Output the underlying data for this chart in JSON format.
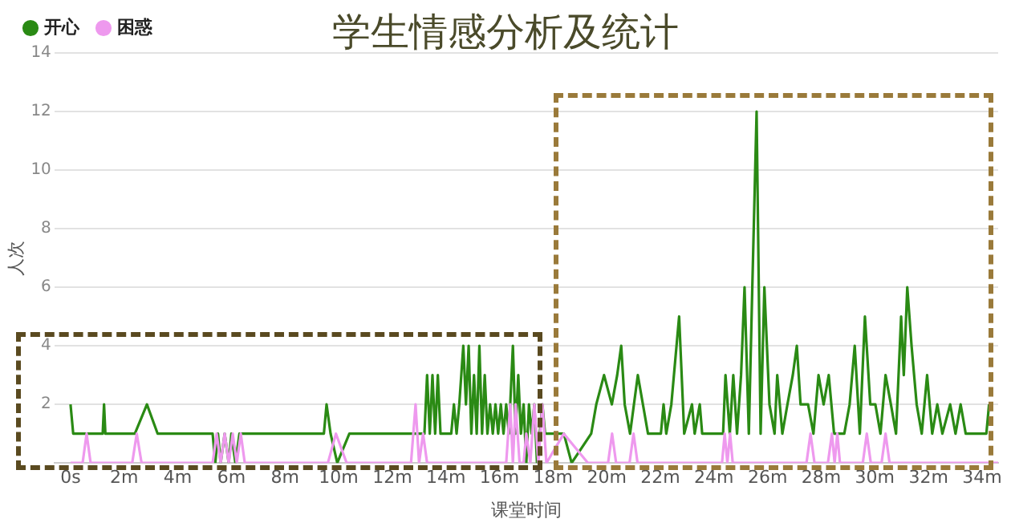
{
  "chart_data": {
    "type": "line",
    "title": "学生情感分析及统计",
    "xlabel": "课堂时间",
    "ylabel": "人次",
    "xlim": [
      -0.6,
      34.6
    ],
    "ylim": [
      0,
      14
    ],
    "xticks": [
      {
        "value": 0,
        "label": "0s"
      },
      {
        "value": 2,
        "label": "2m"
      },
      {
        "value": 4,
        "label": "4m"
      },
      {
        "value": 6,
        "label": "6m"
      },
      {
        "value": 8,
        "label": "8m"
      },
      {
        "value": 10,
        "label": "10m"
      },
      {
        "value": 12,
        "label": "12m"
      },
      {
        "value": 14,
        "label": "14m"
      },
      {
        "value": 16,
        "label": "16m"
      },
      {
        "value": 18,
        "label": "18m"
      },
      {
        "value": 20,
        "label": "20m"
      },
      {
        "value": 22,
        "label": "22m"
      },
      {
        "value": 24,
        "label": "24m"
      },
      {
        "value": 26,
        "label": "26m"
      },
      {
        "value": 28,
        "label": "28m"
      },
      {
        "value": 30,
        "label": "30m"
      },
      {
        "value": 32,
        "label": "32m"
      },
      {
        "value": 34,
        "label": "34m"
      }
    ],
    "yticks": [
      {
        "value": 0,
        "label": null
      },
      2,
      4,
      6,
      8,
      10,
      12,
      14
    ],
    "grid": "y",
    "legend": "top left",
    "marker": "none",
    "line_style": "solid",
    "series": [
      {
        "name": "开心",
        "color": "#2a8a14",
        "x": [
          0,
          0.1,
          1.2,
          1.25,
          1.3,
          2.4,
          2.85,
          3.25,
          5.3,
          5.4,
          5.5,
          5.6,
          5.75,
          5.9,
          6.0,
          6.15,
          6.3,
          9.45,
          9.55,
          9.7,
          9.95,
          10.4,
          13.2,
          13.3,
          13.4,
          13.5,
          13.6,
          13.7,
          13.8,
          14.2,
          14.3,
          14.4,
          14.5,
          14.65,
          14.75,
          14.85,
          14.95,
          15.05,
          15.15,
          15.25,
          15.35,
          15.45,
          15.55,
          15.65,
          15.75,
          15.85,
          15.95,
          16.05,
          16.15,
          16.25,
          16.35,
          16.5,
          16.6,
          16.7,
          16.8,
          16.9,
          17.0,
          17.1,
          17.2,
          17.3,
          17.4,
          17.5,
          17.6,
          17.7,
          18.4,
          18.69,
          19.42,
          19.61,
          19.9,
          20.19,
          20.39,
          20.54,
          20.67,
          20.87,
          21.16,
          21.35,
          21.54,
          22.02,
          22.12,
          22.22,
          22.41,
          22.7,
          22.89,
          23.18,
          23.28,
          23.47,
          23.56,
          24.34,
          24.43,
          24.59,
          24.72,
          24.86,
          25.01,
          25.14,
          25.3,
          25.43,
          25.59,
          25.74,
          25.88,
          26.07,
          26.26,
          26.36,
          26.55,
          26.74,
          26.94,
          27.09,
          27.23,
          27.51,
          27.71,
          27.9,
          28.09,
          28.28,
          28.48,
          28.86,
          29.06,
          29.25,
          29.44,
          29.63,
          29.83,
          30.02,
          30.21,
          30.4,
          30.6,
          30.79,
          30.98,
          31.08,
          31.21,
          31.37,
          31.56,
          31.75,
          31.95,
          32.14,
          32.33,
          32.52,
          32.81,
          33.01,
          33.2,
          33.39,
          34.16,
          34.26
        ],
        "values": [
          2,
          1,
          1,
          2,
          1,
          1,
          2,
          1,
          1,
          0,
          1,
          0,
          1,
          0,
          1,
          0,
          1,
          1,
          2,
          1,
          0,
          1,
          1,
          3,
          1,
          3,
          1,
          3,
          1,
          1,
          2,
          1,
          2,
          4,
          2,
          4,
          1,
          3,
          1,
          4,
          1,
          3,
          1,
          2,
          1,
          2,
          1,
          2,
          1,
          2,
          1,
          4,
          1,
          3,
          1,
          2,
          0,
          2,
          1,
          2,
          0,
          1,
          2,
          1,
          1,
          0,
          1,
          2,
          3,
          2,
          3,
          4,
          2,
          1,
          3,
          2,
          1,
          1,
          2,
          1,
          2,
          5,
          1,
          2,
          1,
          2,
          1,
          1,
          3,
          1,
          3,
          1,
          3,
          6,
          1,
          6,
          12,
          1,
          6,
          2,
          1,
          3,
          1,
          2,
          3,
          4,
          2,
          2,
          1,
          3,
          2,
          3,
          1,
          1,
          2,
          4,
          1,
          5,
          2,
          2,
          1,
          3,
          2,
          1,
          5,
          3,
          6,
          4,
          2,
          1,
          3,
          1,
          2,
          1,
          2,
          1,
          2,
          1,
          1,
          2
        ]
      },
      {
        "name": "困惑",
        "color": "#ee99ee",
        "x": [
          0,
          0.45,
          0.6,
          0.75,
          2.3,
          2.47,
          2.65,
          5.3,
          5.45,
          5.6,
          5.75,
          5.9,
          6.05,
          6.2,
          6.35,
          6.5,
          9.6,
          9.9,
          10.3,
          12.7,
          12.87,
          13.0,
          13.15,
          13.3,
          13.45,
          16.25,
          16.4,
          16.5,
          16.6,
          16.75,
          16.9,
          17.0,
          17.15,
          17.3,
          17.45,
          17.6,
          17.75,
          18.4,
          19.3,
          20.05,
          20.2,
          20.35,
          20.85,
          21.0,
          21.15,
          24.3,
          24.4,
          24.5,
          24.6,
          24.7,
          27.45,
          27.6,
          27.75,
          28.25,
          28.4,
          28.5,
          28.6,
          28.7,
          29.55,
          29.7,
          29.85,
          30.25,
          30.4,
          30.55,
          34.6
        ],
        "values": [
          0,
          0,
          1,
          0,
          0,
          1,
          0,
          0,
          1,
          0,
          1,
          0,
          1,
          0,
          1,
          0,
          0,
          1,
          0,
          0,
          2,
          0,
          1,
          0,
          0,
          0,
          2,
          0,
          2,
          0,
          0,
          1,
          0,
          2,
          0,
          2,
          0,
          1,
          0,
          0,
          1,
          0,
          0,
          1,
          0,
          0,
          1,
          0,
          1,
          0,
          0,
          1,
          0,
          0,
          1,
          0,
          1,
          0,
          0,
          1,
          0,
          0,
          1,
          0,
          0
        ]
      }
    ]
  }
}
